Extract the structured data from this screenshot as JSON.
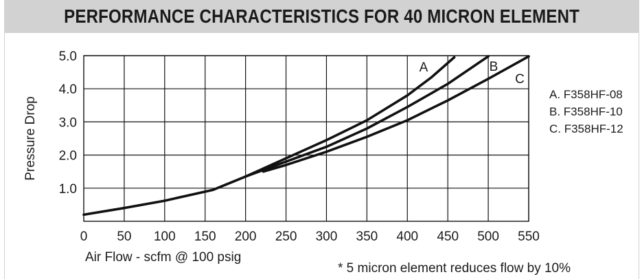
{
  "page": {
    "title": "PERFORMANCE CHARACTERISTICS FOR 40 MICRON ELEMENT",
    "footnote": "* 5 micron element reduces flow by 10%"
  },
  "chart_data": {
    "type": "line",
    "title": "PERFORMANCE CHARACTERISTICS FOR 40 MICRON ELEMENT",
    "xlabel": "Air Flow - scfm @ 100 psig",
    "ylabel": "Pressure Drop",
    "xlim": [
      0,
      550
    ],
    "ylim": [
      0,
      5
    ],
    "x_ticks": [
      0,
      50,
      100,
      150,
      200,
      250,
      300,
      350,
      400,
      450,
      500,
      550
    ],
    "y_ticks": [
      1,
      2,
      3,
      4,
      5
    ],
    "y_tick_labels": [
      "1.0",
      "2.0",
      "3.0",
      "4.0",
      "5.0"
    ],
    "grid": true,
    "legend_position": "right",
    "legend": [
      "A. F358HF-08",
      "B. F358HF-10",
      "C. F358HF-12"
    ],
    "series": [
      {
        "name": "A",
        "x": [
          0,
          50,
          100,
          160,
          200,
          250,
          300,
          350,
          400,
          430,
          458
        ],
        "y": [
          0.2,
          0.4,
          0.62,
          0.95,
          1.35,
          1.9,
          2.45,
          3.05,
          3.8,
          4.35,
          4.95
        ]
      },
      {
        "name": "B",
        "x": [
          200,
          250,
          300,
          350,
          400,
          450,
          500
        ],
        "y": [
          1.35,
          1.8,
          2.25,
          2.8,
          3.45,
          4.15,
          4.98
        ]
      },
      {
        "name": "C",
        "x": [
          222,
          250,
          300,
          350,
          400,
          450,
          500,
          550
        ],
        "y": [
          1.5,
          1.7,
          2.1,
          2.55,
          3.05,
          3.65,
          4.3,
          4.98
        ]
      }
    ],
    "colors": {
      "line": "#111111",
      "grid": "#111111",
      "text": "#1a1a1a"
    }
  }
}
